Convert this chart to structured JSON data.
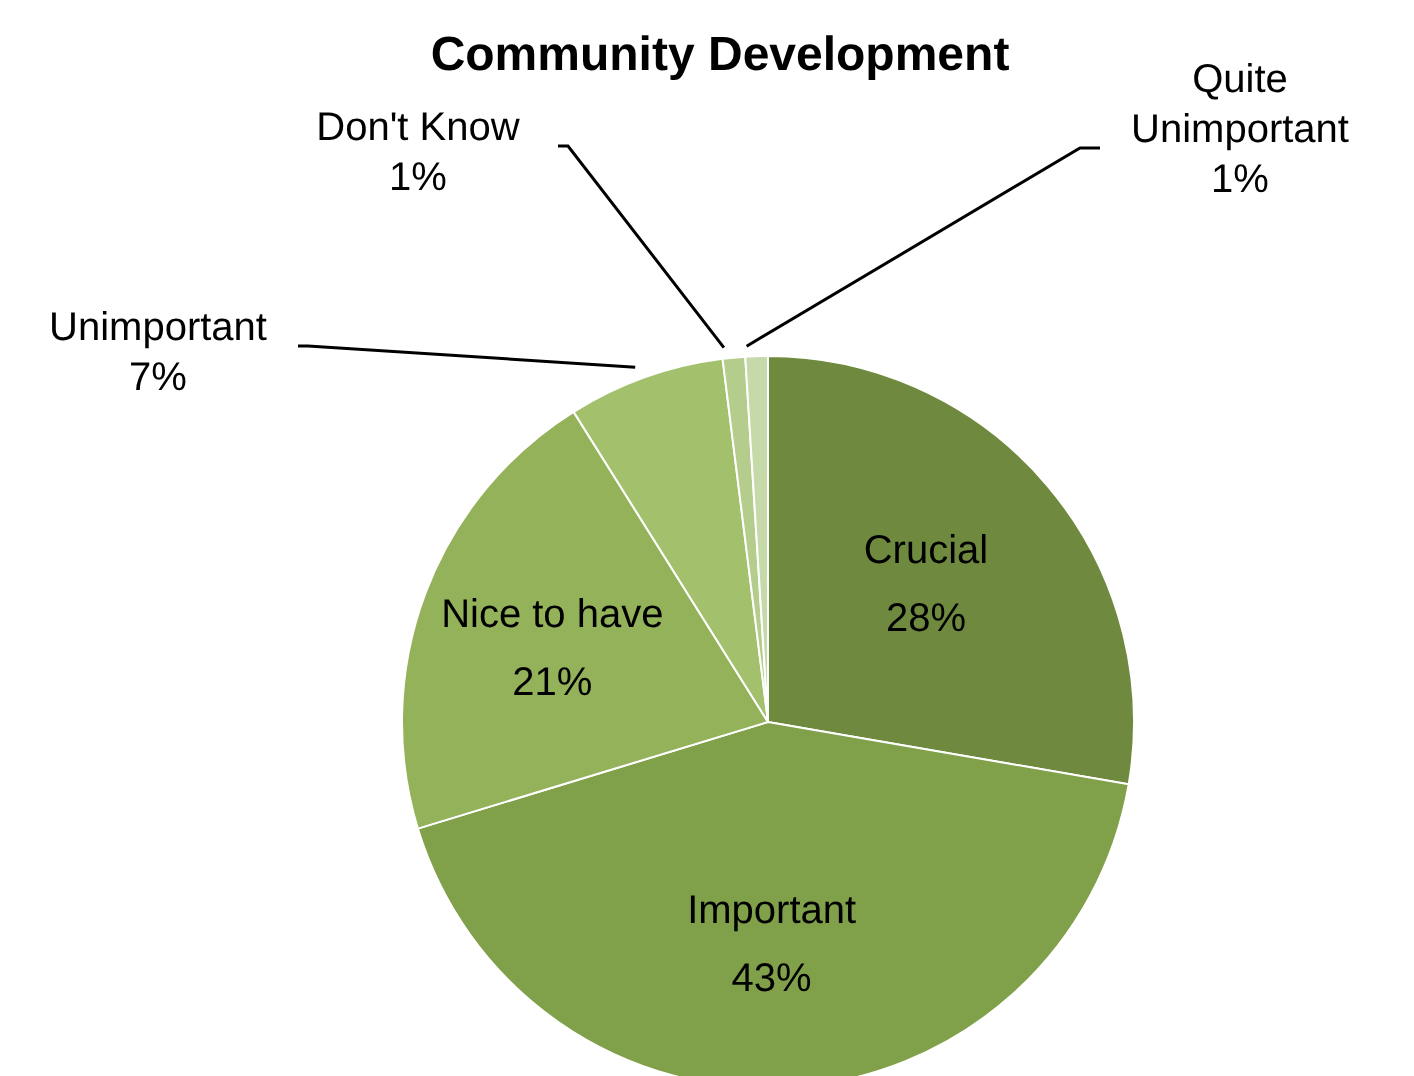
{
  "chart_data": {
    "type": "pie",
    "title": "Community Development",
    "categories": [
      "Crucial",
      "Important",
      "Nice to have",
      "Unimportant",
      "Don't Know",
      "Quite Unimportant"
    ],
    "values": [
      28,
      43,
      21,
      7,
      1,
      1
    ],
    "value_labels": [
      "28%",
      "43%",
      "21%",
      "7%",
      "1%",
      "1%"
    ],
    "colors": [
      "#6f8a3e",
      "#80a04a",
      "#93b25a",
      "#a3c06c",
      "#b4cc8c",
      "#c6d9a8"
    ],
    "legend": false
  }
}
